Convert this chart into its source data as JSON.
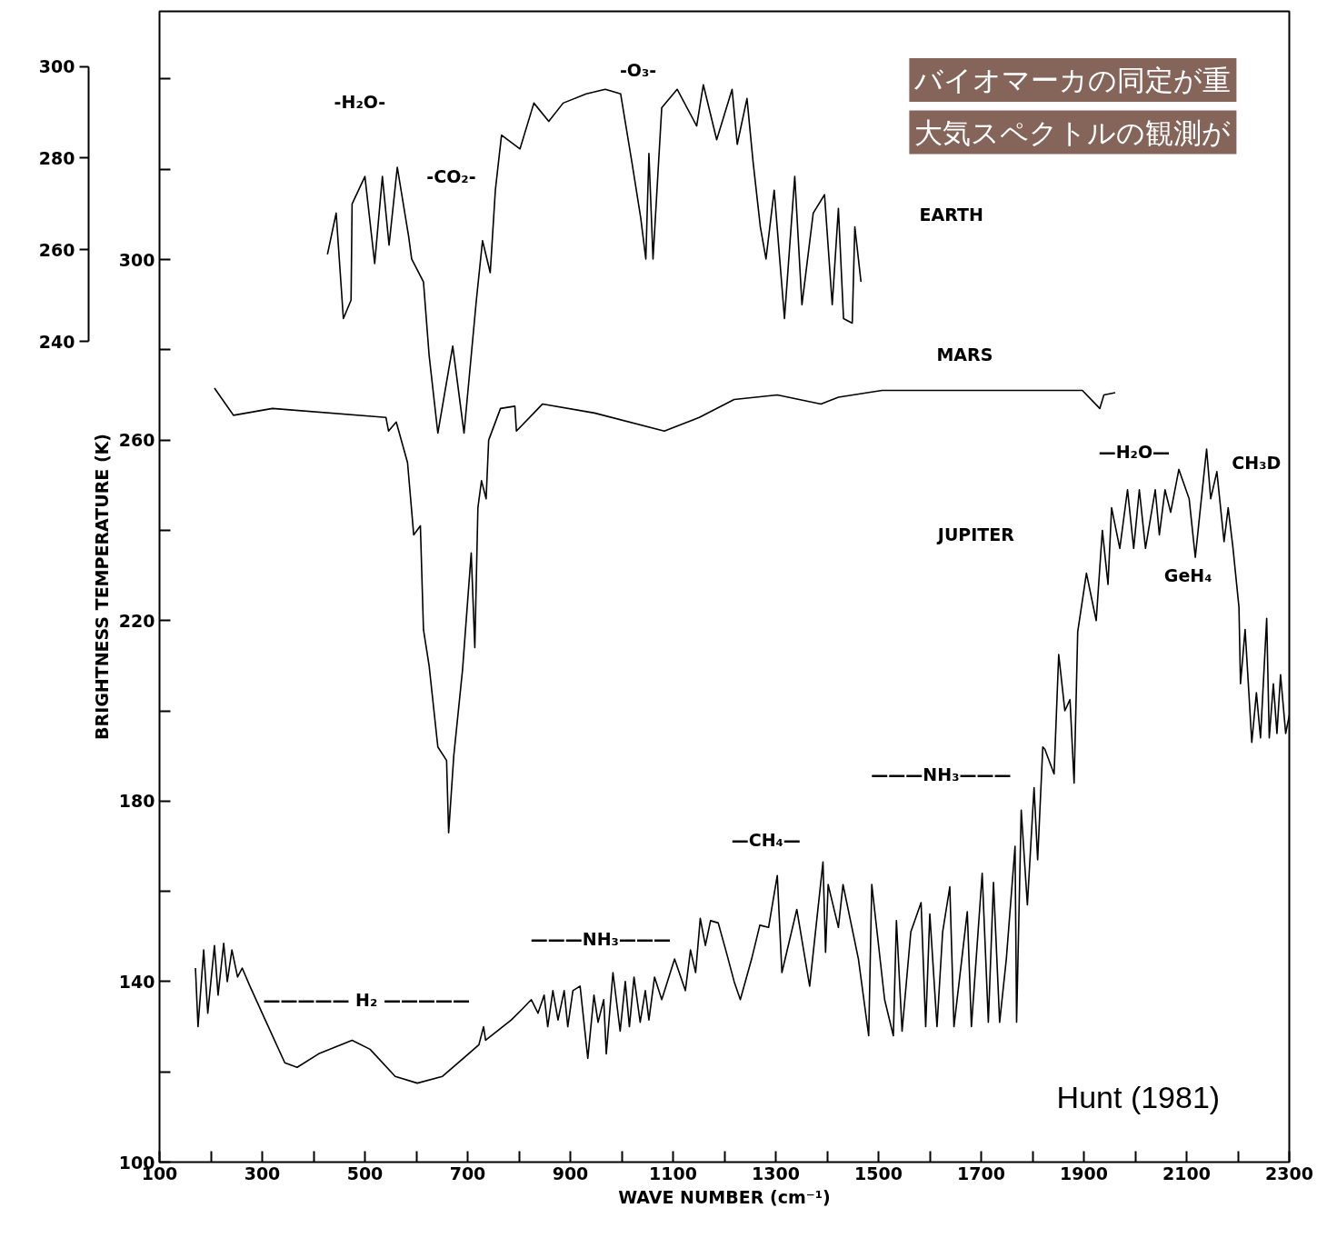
{
  "chart_data": {
    "type": "line",
    "xlabel": "WAVE NUMBER (cm⁻¹)",
    "ylabel": "BRIGHTNESS TEMPERATURE (K)",
    "xlim": [
      100,
      2300
    ],
    "ylim": [
      100,
      355
    ],
    "xticks": [
      100,
      {
        "value": 200,
        "label": null
      },
      300,
      {
        "value": 400,
        "label": null
      },
      500,
      {
        "value": 600,
        "label": null
      },
      700,
      {
        "value": 800,
        "label": null
      },
      900,
      {
        "value": 1000,
        "label": null
      },
      1100,
      {
        "value": 1200,
        "label": null
      },
      1300,
      {
        "value": 1400,
        "label": null
      },
      1500,
      {
        "value": 1600,
        "label": null
      },
      1700,
      {
        "value": 1800,
        "label": null
      },
      1900,
      {
        "value": 2000,
        "label": null
      },
      2100,
      {
        "value": 2200,
        "label": null
      },
      2300
    ],
    "yticks": [
      100,
      {
        "value": 120,
        "label": null
      },
      140,
      {
        "value": 160,
        "label": null
      },
      180,
      {
        "value": 200,
        "label": null
      },
      220,
      {
        "value": 240,
        "label": null
      },
      260,
      {
        "value": 280,
        "label": null
      },
      300,
      {
        "value": 320,
        "label": null
      },
      {
        "value": 340,
        "label": null
      }
    ],
    "y2lim": [
      61,
      312
    ],
    "y2ticks": [
      240,
      260,
      280,
      300
    ],
    "grid": false,
    "line_style": "solid",
    "marker": "none",
    "series": [
      {
        "color": "#000000",
        "axis": "y2",
        "x": [
          427,
          444,
          458,
          473,
          475,
          500,
          519,
          534,
          547,
          563,
          585,
          591,
          614,
          625,
          642,
          671,
          693,
          717,
          729,
          744,
          754,
          766,
          802,
          829,
          858,
          886,
          931,
          968,
          998,
          1020,
          1037,
          1047,
          1053,
          1061,
          1078,
          1108,
          1146,
          1159,
          1185,
          1215,
          1225,
          1244,
          1256,
          1270,
          1281,
          1297,
          1317,
          1337,
          1351,
          1373,
          1395,
          1410,
          1422,
          1432,
          1449,
          1454,
          1466
        ],
        "values": [
          259,
          268,
          245,
          249,
          270,
          276,
          257,
          276,
          261,
          278,
          263,
          258,
          253,
          237,
          220,
          239,
          220,
          249,
          262,
          255,
          273,
          285,
          282,
          292,
          288,
          292,
          294,
          295,
          294,
          279,
          267,
          258,
          281,
          258,
          291,
          295,
          287,
          296,
          284,
          295,
          283,
          293,
          279,
          265,
          258,
          273,
          245,
          276,
          248,
          268,
          272,
          248,
          269,
          245,
          244,
          265,
          253
        ]
      },
      {
        "color": "#000000",
        "x": [
          207,
          244,
          320,
          541,
          546,
          561,
          583,
          595,
          608,
          614,
          625,
          642,
          659,
          663,
          673,
          690,
          707,
          714,
          720,
          727,
          736,
          741,
          764,
          792,
          795,
          846,
          947,
          1083,
          1151,
          1219,
          1303,
          1388,
          1422,
          1507,
          1676,
          1897,
          1931,
          1939,
          1961
        ],
        "values": [
          271.5,
          265.5,
          267,
          265,
          262,
          264,
          255,
          239,
          241,
          218,
          210,
          192,
          189,
          173,
          190,
          209,
          235,
          214,
          245,
          251,
          247,
          260,
          267,
          267.5,
          262,
          268,
          266,
          262,
          265,
          269,
          270,
          268,
          269.5,
          271,
          271,
          271,
          267,
          270,
          270.5
        ]
      },
      {
        "color": "#000000",
        "x": [
          170,
          175,
          186,
          194,
          207,
          214,
          225,
          232,
          241,
          252,
          261,
          276,
          312,
          344,
          368,
          410,
          475,
          510,
          559,
          602,
          651,
          722,
          731,
          735,
          785,
          807,
          824,
          837,
          849,
          856,
          866,
          876,
          888,
          895,
          905,
          919,
          934,
          946,
          954,
          965,
          970,
          983,
          997,
          1007,
          1015,
          1024,
          1036,
          1046,
          1053,
          1064,
          1078,
          1103,
          1124,
          1134,
          1144,
          1153,
          1163,
          1173,
          1188,
          1205,
          1219,
          1231,
          1253,
          1269,
          1286,
          1303,
          1312,
          1341,
          1366,
          1392,
          1397,
          1402,
          1422,
          1431,
          1461,
          1481,
          1487,
          1512,
          1529,
          1535,
          1546,
          1563,
          1583,
          1592,
          1600,
          1614,
          1625,
          1639,
          1647,
          1673,
          1681,
          1702,
          1714,
          1724,
          1736,
          1749,
          1766,
          1769,
          1778,
          1790,
          1803,
          1810,
          1820,
          1824,
          1842,
          1851,
          1863,
          1873,
          1881,
          1888,
          1905,
          1924,
          1936,
          1947,
          1954,
          1970,
          1985,
          1997,
          2008,
          2020,
          2039,
          2047,
          2058,
          2069,
          2085,
          2105,
          2117,
          2127,
          2139,
          2147,
          2159,
          2173,
          2181,
          2190,
          2202,
          2205,
          2214,
          2227,
          2236,
          2244,
          2256,
          2261,
          2269,
          2276,
          2283,
          2293,
          2300
        ],
        "values": [
          143,
          130,
          147,
          133,
          148,
          137,
          148.5,
          140,
          147,
          141,
          143,
          139,
          130,
          122,
          121,
          124,
          127,
          125,
          119,
          117.5,
          119,
          126,
          130,
          127,
          131.5,
          134,
          136,
          133,
          137,
          130,
          138,
          131.5,
          138,
          130,
          138,
          139,
          123,
          137,
          131,
          136,
          124,
          142,
          129,
          140,
          130,
          141,
          131,
          138,
          131.5,
          141,
          136,
          145,
          138,
          147,
          142,
          154,
          148,
          153.5,
          153,
          146,
          140,
          136,
          145,
          152.5,
          152,
          163.5,
          142,
          156,
          139,
          166.5,
          146.5,
          161.5,
          152,
          161.5,
          145,
          128,
          161.5,
          136,
          128,
          153.5,
          129,
          151,
          157.5,
          130,
          155,
          130,
          151,
          161,
          130,
          155.5,
          130,
          164,
          131,
          162,
          131,
          145,
          170,
          131,
          178,
          157,
          183,
          167,
          192,
          191.5,
          186,
          212.5,
          200,
          202.5,
          184,
          217.5,
          230.5,
          220,
          240,
          228,
          245,
          236,
          249,
          236,
          249,
          236,
          249,
          239,
          249,
          244,
          253.5,
          247,
          234,
          245,
          258,
          247,
          253,
          237.5,
          245,
          236.5,
          223,
          206,
          218,
          193,
          204,
          194,
          220.5,
          194,
          206,
          195,
          208,
          195,
          199
        ]
      }
    ],
    "annotations": [
      "-H₂O-",
      "-CO₂-",
      "-O₃-",
      "EARTH",
      "—H₂O—",
      "CH₃D",
      "GeH₄",
      "———NH₃———",
      "—CH₄—",
      "———NH₃———",
      "————— H₂ —————",
      "バイオマーカの同定が重",
      "大気スペクトルの観測が",
      "Hunt (1981)",
      "MARS",
      "JUPITER"
    ]
  }
}
